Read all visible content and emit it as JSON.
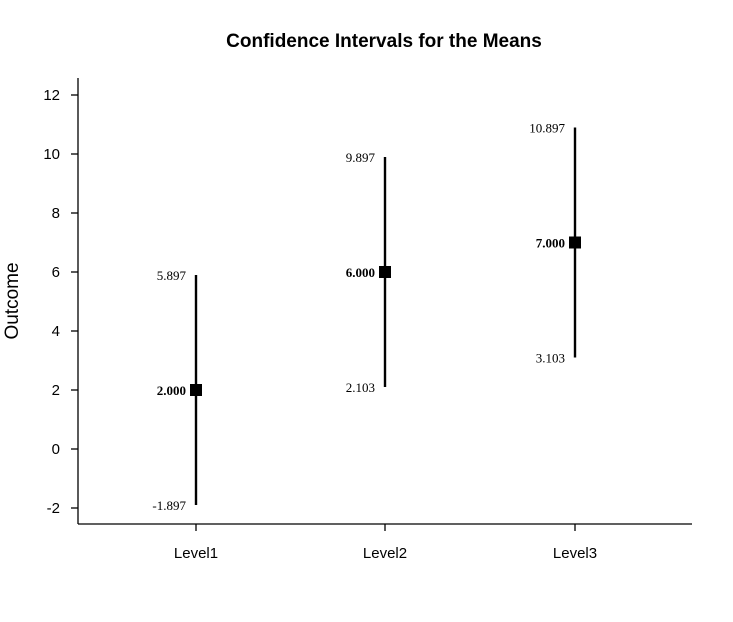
{
  "chart_data": {
    "type": "errorbar",
    "title": "Confidence Intervals for the Means",
    "xlabel": "",
    "ylabel": "Outcome",
    "ylim": [
      -2.6,
      12.6
    ],
    "yticks": [
      "-2",
      "0",
      "2",
      "4",
      "6",
      "8",
      "10",
      "12"
    ],
    "categories": [
      "Level1",
      "Level2",
      "Level3"
    ],
    "means": [
      2.0,
      6.0,
      7.0
    ],
    "lower": [
      -1.897,
      2.103,
      3.103
    ],
    "upper": [
      5.897,
      9.897,
      10.897
    ],
    "mean_labels": [
      "2.000",
      "6.000",
      "7.000"
    ],
    "lower_labels": [
      "-1.897",
      "2.103",
      "3.103"
    ],
    "upper_labels": [
      "5.897",
      "9.897",
      "10.897"
    ],
    "grid": false,
    "colors": {
      "marks": "#000000"
    }
  }
}
